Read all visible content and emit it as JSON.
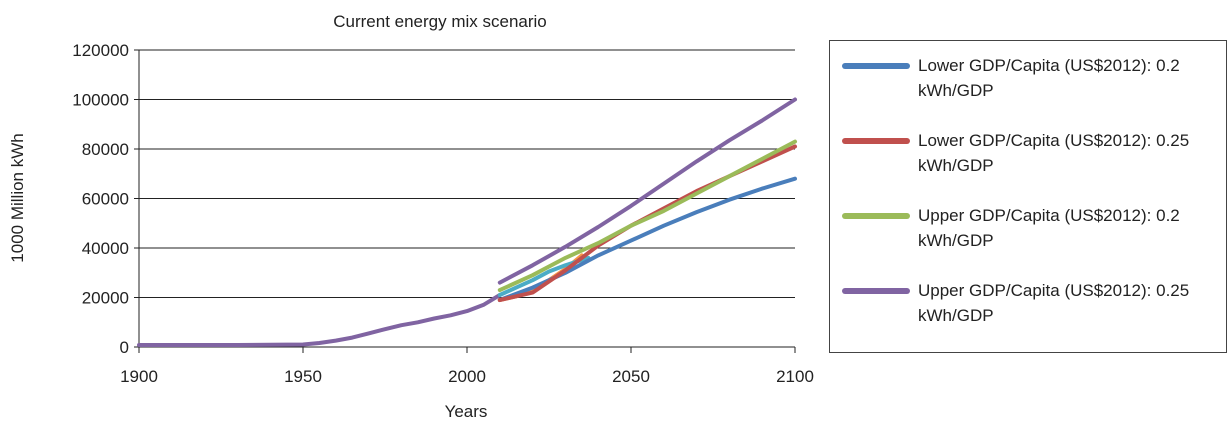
{
  "chart_data": {
    "type": "line",
    "title": "Current energy mix scenario",
    "xlabel": "Years",
    "ylabel": "1000 Million kWh",
    "xlim": [
      1900,
      2100
    ],
    "ylim": [
      0,
      120000
    ],
    "x_ticks": [
      1900,
      1950,
      2000,
      2050,
      2100
    ],
    "y_ticks": [
      0,
      20000,
      40000,
      60000,
      80000,
      100000,
      120000
    ],
    "grid": "horizontal",
    "legend_position": "right",
    "historical": {
      "color": "#8064a2",
      "x": [
        1900,
        1910,
        1920,
        1930,
        1940,
        1950,
        1955,
        1960,
        1965,
        1970,
        1975,
        1980,
        1985,
        1990,
        1995,
        2000,
        2005,
        2010
      ],
      "y": [
        800,
        800,
        800,
        800,
        900,
        1000,
        1600,
        2600,
        3800,
        5500,
        7200,
        8800,
        10000,
        11500,
        12800,
        14500,
        17000,
        21000
      ]
    },
    "series": [
      {
        "name": "Lower GDP/Capita (US$2012): 0.2 kWh/GDP",
        "color": "#4a7ebb",
        "x": [
          2010,
          2020,
          2030,
          2040,
          2050,
          2060,
          2070,
          2080,
          2090,
          2100
        ],
        "y": [
          19000,
          24000,
          30000,
          37000,
          43000,
          49000,
          54500,
          59500,
          64000,
          68000
        ]
      },
      {
        "name": "Lower GDP/Capita (US$2012): 0.25 kWh/GDP",
        "color": "#c0504d",
        "x": [
          2010,
          2020,
          2030,
          2040,
          2050,
          2060,
          2070,
          2080,
          2090,
          2100
        ],
        "y": [
          19000,
          22000,
          31000,
          41000,
          49000,
          56000,
          63000,
          69000,
          75000,
          81000
        ]
      },
      {
        "name": "Upper GDP/Capita (US$2012): 0.2 kWh/GDP",
        "color": "#9bbb59",
        "x": [
          2010,
          2020,
          2030,
          2040,
          2050,
          2060,
          2070,
          2080,
          2090,
          2100
        ],
        "y": [
          23000,
          29000,
          36000,
          42000,
          49000,
          55000,
          62000,
          69000,
          76000,
          83000
        ]
      },
      {
        "name": "Upper GDP/Capita (US$2012): 0.25 kWh/GDP",
        "color": "#8064a2",
        "x": [
          2010,
          2020,
          2030,
          2040,
          2050,
          2060,
          2070,
          2080,
          2090,
          2100
        ],
        "y": [
          26000,
          33000,
          40500,
          48500,
          57000,
          66000,
          75000,
          83500,
          91500,
          100000
        ]
      }
    ],
    "extra_segments": [
      {
        "color": "#f79646",
        "x": [
          2010,
          2015,
          2020,
          2025,
          2030,
          2035
        ],
        "y": [
          19000,
          20500,
          23500,
          27000,
          31500,
          37000
        ]
      },
      {
        "color": "#4bacc6",
        "x": [
          2010,
          2015,
          2020,
          2025,
          2030,
          2037
        ],
        "y": [
          21000,
          24000,
          27000,
          30500,
          33000,
          36000
        ]
      }
    ]
  }
}
